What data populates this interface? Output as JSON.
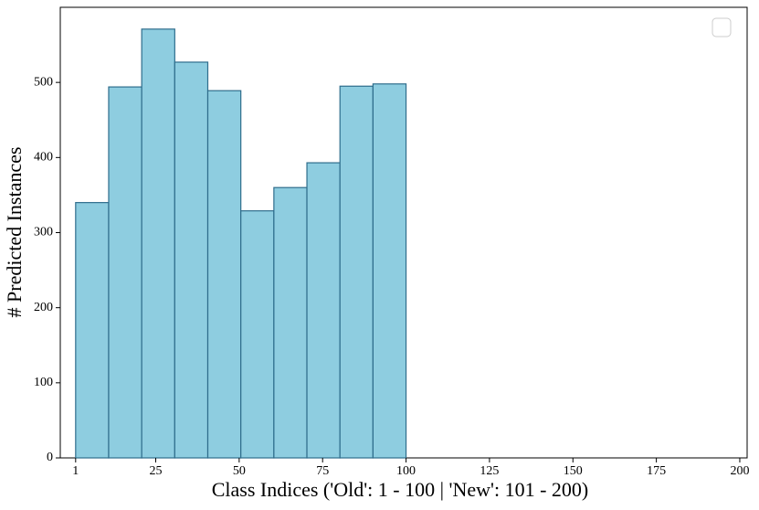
{
  "chart_data": {
    "type": "histogram",
    "xlabel": "Class Indices ('Old': 1 - 100 | 'New': 101 - 200)",
    "ylabel": "# Predicted Instances",
    "bins": [
      1,
      10.9,
      20.8,
      30.7,
      40.6,
      50.5,
      60.4,
      70.3,
      80.2,
      90.1,
      100
    ],
    "values": [
      340,
      494,
      571,
      527,
      489,
      329,
      360,
      393,
      495,
      498
    ],
    "color": "#8ecde0",
    "edgecolor": "#2f6d8c",
    "xlim": [
      -3.6,
      202.2
    ],
    "xticks": [
      1,
      25,
      50,
      75,
      100,
      125,
      150,
      175,
      200
    ],
    "ylim": [
      0,
      600
    ],
    "yticks": [
      0,
      100,
      200,
      300,
      400,
      500
    ],
    "grid": false
  }
}
